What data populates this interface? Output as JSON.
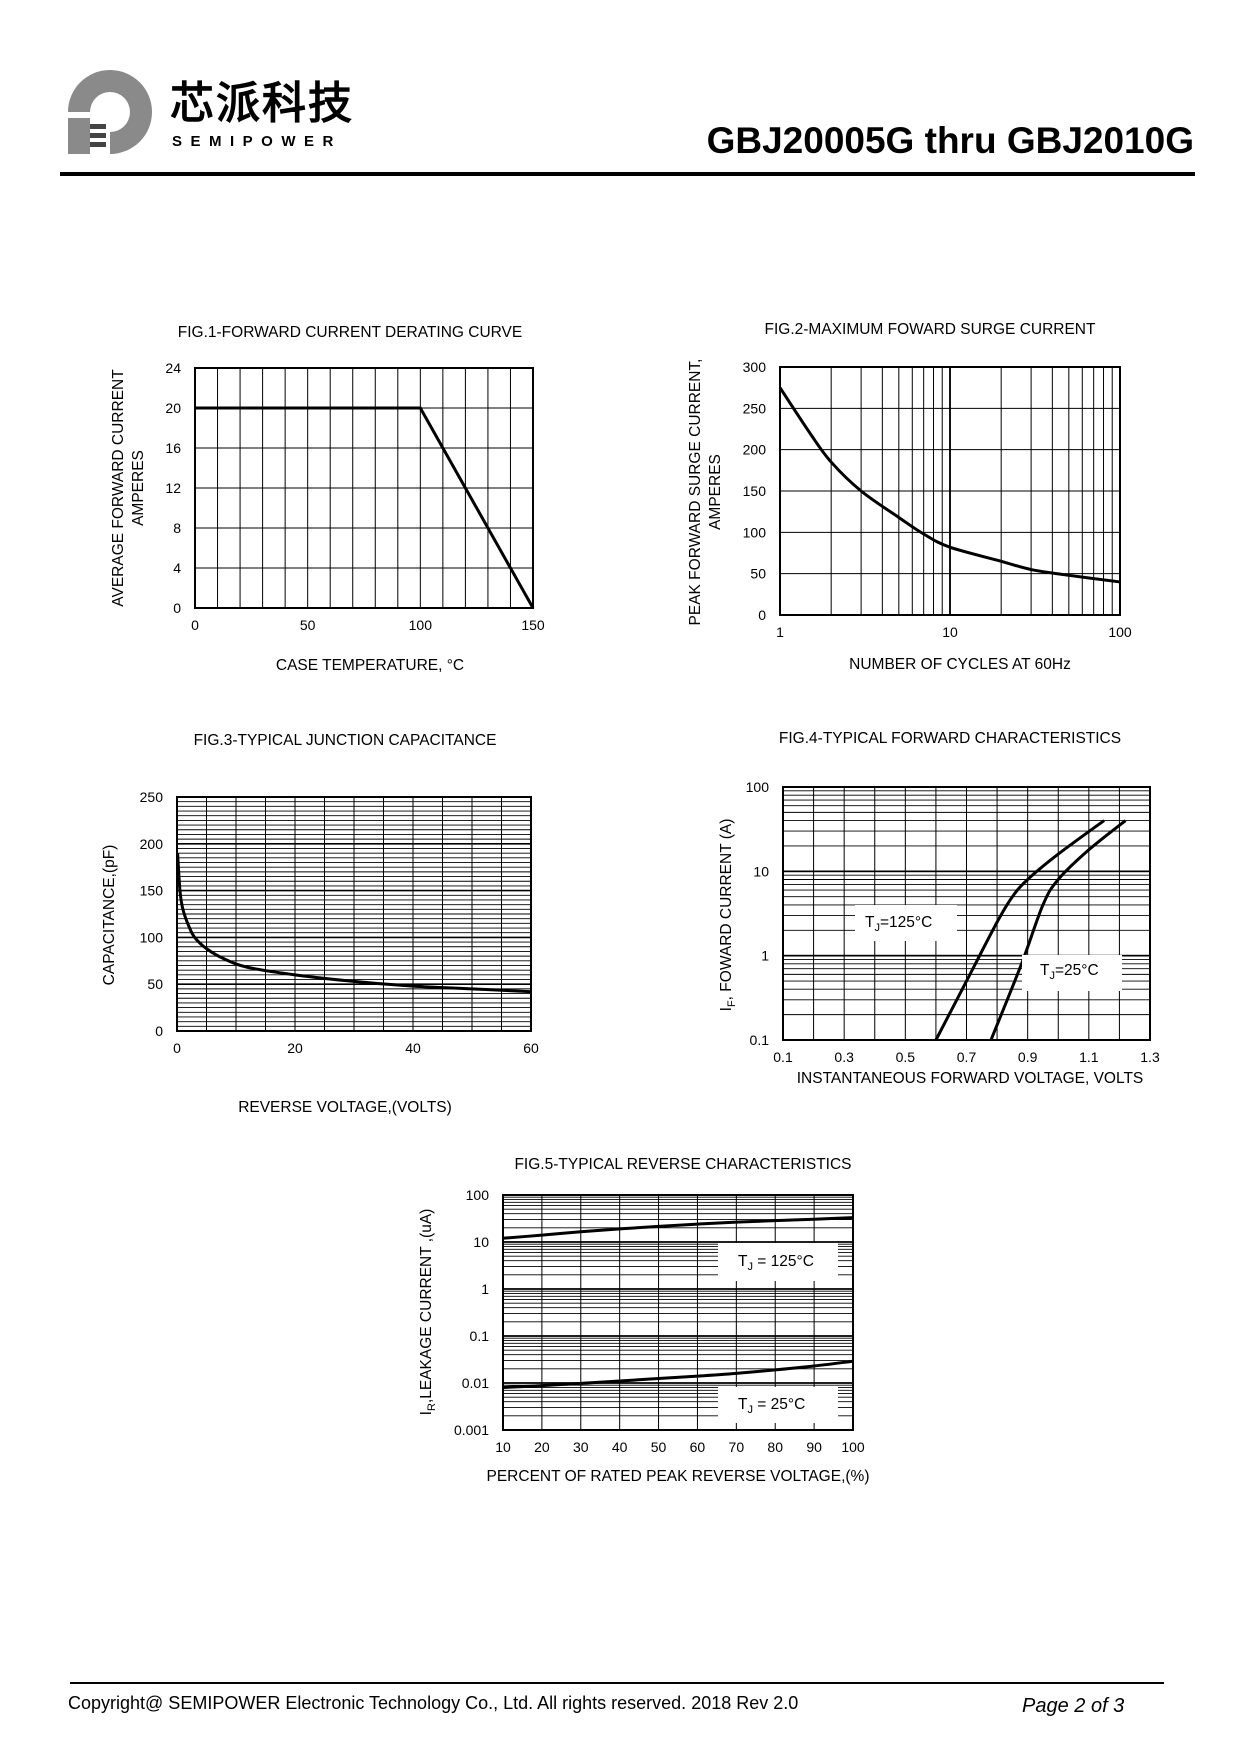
{
  "header": {
    "brand_cn": "芯派科技",
    "brand_en": "SEMIPOWER",
    "title": "GBJ20005G thru GBJ2010G",
    "logo_icon": "semipower-logo-icon"
  },
  "footer": {
    "copyright": "Copyright@ SEMIPOWER Electronic Technology Co., Ltd.  All rights reserved.  2018  Rev  2.0",
    "page": "Page  2  of  3"
  },
  "chart_data": [
    {
      "id": "fig1",
      "type": "line",
      "title": "FIG.1-FORWARD CURRENT DERATING CURVE",
      "xlabel": "CASE TEMPERATURE, °C",
      "ylabel": [
        "AVERAGE FORWARD CURRENT",
        "AMPERES"
      ],
      "xlim": [
        0,
        150
      ],
      "ylim": [
        0,
        24
      ],
      "xticks": [
        0,
        50,
        100,
        150
      ],
      "xtick_labels": [
        "0",
        "50",
        "100",
        "150"
      ],
      "yticks": [
        0,
        4,
        8,
        12,
        16,
        20,
        24
      ],
      "ytick_labels": [
        "0",
        "4",
        "8",
        "12",
        "16",
        "20",
        "24"
      ],
      "series": [
        {
          "name": "derating",
          "x": [
            0,
            100,
            150
          ],
          "y": [
            20,
            20,
            0
          ]
        }
      ]
    },
    {
      "id": "fig2",
      "type": "line",
      "title": "FIG.2-MAXIMUM FOWARD  SURGE CURRENT",
      "xlabel": "NUMBER OF CYCLES AT 60Hz",
      "ylabel": [
        "PEAK FORWARD SURGE CURRENT,",
        "AMPERES"
      ],
      "xscale": "log",
      "xlim": [
        1,
        100
      ],
      "ylim": [
        0,
        300
      ],
      "xticks": [
        1,
        10,
        100
      ],
      "xtick_labels": [
        "1",
        "10",
        "100"
      ],
      "yticks": [
        0,
        50,
        100,
        150,
        200,
        250,
        300
      ],
      "ytick_labels": [
        "0",
        "50",
        "100",
        "150",
        "200",
        "250",
        "300"
      ],
      "series": [
        {
          "name": "surge",
          "x": [
            1,
            1.5,
            2,
            3,
            5,
            7,
            10,
            20,
            30,
            50,
            100
          ],
          "y": [
            275,
            220,
            185,
            150,
            118,
            98,
            82,
            65,
            55,
            48,
            40
          ]
        }
      ]
    },
    {
      "id": "fig3",
      "type": "line",
      "title": "FIG.3-TYPICAL JUNCTION CAPACITANCE",
      "xlabel": "REVERSE VOLTAGE,(VOLTS)",
      "ylabel": [
        "CAPACITANCE,(pF)"
      ],
      "xlim": [
        0,
        60
      ],
      "ylim": [
        0,
        250
      ],
      "xticks": [
        0,
        20,
        40,
        60
      ],
      "xtick_labels": [
        "0",
        "20",
        "40",
        "60"
      ],
      "yticks": [
        0,
        50,
        100,
        150,
        200,
        250
      ],
      "ytick_labels": [
        "0",
        "50",
        "100",
        "150",
        "200",
        "250"
      ],
      "series": [
        {
          "name": "capacitance",
          "x": [
            0.1,
            0.5,
            1,
            2,
            3,
            5,
            8,
            12,
            20,
            30,
            40,
            50,
            60
          ],
          "y": [
            190,
            150,
            130,
            112,
            100,
            88,
            77,
            68,
            60,
            53,
            48,
            45,
            42
          ]
        }
      ]
    },
    {
      "id": "fig4",
      "type": "line",
      "title": "FIG.4-TYPICAL FORWARD CHARACTERISTICS",
      "xlabel": "INSTANTANEOUS FORWARD VOLTAGE, VOLTS",
      "ylabel": [
        "I",
        "F",
        ", FOWARD CURRENT (A)"
      ],
      "yscale": "log",
      "xlim": [
        0.1,
        1.3
      ],
      "ylim": [
        0.1,
        100
      ],
      "xticks": [
        0.1,
        0.3,
        0.5,
        0.7,
        0.9,
        1.1,
        1.3
      ],
      "xtick_labels": [
        "0.1",
        "0.3",
        "0.5",
        "0.7",
        "0.9",
        "1.1",
        "1.3"
      ],
      "yticks": [
        0.1,
        1,
        10,
        100
      ],
      "ytick_labels": [
        "0.1",
        "1",
        "10",
        "100"
      ],
      "annotations": [
        {
          "text_main": "T",
          "text_sub": "J",
          "text_rest": "=125°C"
        },
        {
          "text_main": "T",
          "text_sub": "J",
          "text_rest": "=25°C"
        }
      ],
      "series": [
        {
          "name": "TJ=125°C",
          "x": [
            0.6,
            0.7,
            0.8,
            0.85,
            0.9,
            1.0,
            1.15
          ],
          "y": [
            0.1,
            0.5,
            2.5,
            5,
            8,
            16,
            40
          ]
        },
        {
          "name": "TJ=25°C",
          "x": [
            0.78,
            0.88,
            0.95,
            1.0,
            1.1,
            1.22
          ],
          "y": [
            0.1,
            0.8,
            4,
            8,
            18,
            40
          ]
        }
      ]
    },
    {
      "id": "fig5",
      "type": "line",
      "title": "FIG.5-TYPICAL REVERSE CHARACTERISTICS",
      "xlabel": "PERCENT OF RATED PEAK REVERSE VOLTAGE,(%)",
      "ylabel": [
        "I",
        "R",
        ",LEAKAGE  CURRENT ,(uA)"
      ],
      "yscale": "log",
      "xlim": [
        10,
        100
      ],
      "ylim": [
        0.001,
        100
      ],
      "xticks": [
        10,
        20,
        30,
        40,
        50,
        60,
        70,
        80,
        90,
        100
      ],
      "xtick_labels": [
        "10",
        "20",
        "30",
        "40",
        "50",
        "60",
        "70",
        "80",
        "90",
        "100"
      ],
      "yticks": [
        0.001,
        0.01,
        0.1,
        1,
        10,
        100
      ],
      "ytick_labels": [
        "0.001",
        "0.01",
        "0.1",
        "1",
        "10",
        "100"
      ],
      "annotations": [
        {
          "text_main": "T",
          "text_sub": "J",
          "text_rest": " = 125°C"
        },
        {
          "text_main": "T",
          "text_sub": "J",
          "text_rest": " = 25°C"
        }
      ],
      "series": [
        {
          "name": "TJ = 125°C",
          "x": [
            10,
            20,
            30,
            40,
            50,
            60,
            70,
            80,
            90,
            100
          ],
          "y": [
            12,
            14,
            16.5,
            19,
            21.5,
            24,
            26.5,
            28.5,
            30.5,
            33
          ]
        },
        {
          "name": "TJ = 25°C",
          "x": [
            10,
            20,
            30,
            40,
            50,
            60,
            70,
            80,
            90,
            100
          ],
          "y": [
            0.008,
            0.0088,
            0.0098,
            0.011,
            0.0125,
            0.014,
            0.016,
            0.019,
            0.023,
            0.029
          ]
        }
      ]
    }
  ]
}
